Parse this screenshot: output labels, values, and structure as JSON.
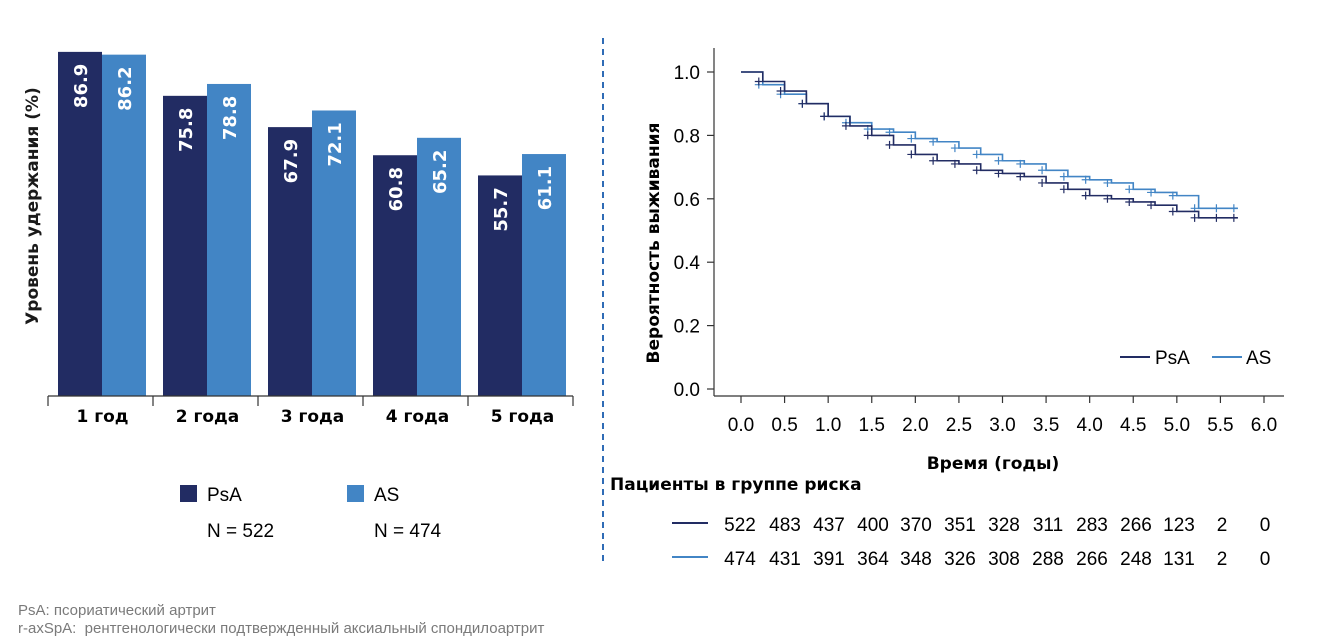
{
  "colors": {
    "psa": "#222c63",
    "as": "#4285c5",
    "divider": "#2f6cb6"
  },
  "chart_data": [
    {
      "type": "bar",
      "ylabel": "Уровень удержания (%)",
      "categories": [
        "1 год",
        "2 года",
        "3 года",
        "4 года",
        "5 года"
      ],
      "ylim": [
        0,
        100
      ],
      "series": [
        {
          "name": "PsA",
          "values": [
            86.9,
            75.8,
            67.9,
            60.8,
            55.7
          ],
          "value_labels": [
            "86.9",
            "75.8",
            "67.9",
            "60.8",
            "55.7"
          ]
        },
        {
          "name": "AS",
          "values": [
            86.2,
            78.8,
            72.1,
            65.2,
            61.1
          ],
          "value_labels": [
            "86.2",
            "78.8",
            "72.1",
            "65.2",
            "61.1"
          ]
        }
      ],
      "legend": [
        {
          "name": "PsA",
          "n": "N = 522"
        },
        {
          "name": "AS",
          "n": "N = 474"
        }
      ]
    },
    {
      "type": "line",
      "xlabel": "Время (годы)",
      "ylabel": "Вероятность выживания",
      "xlim": [
        0,
        6
      ],
      "ylim": [
        0,
        1
      ],
      "xticks": [
        "0.0",
        "0.5",
        "1.0",
        "1.5",
        "2.0",
        "2.5",
        "3.0",
        "3.5",
        "4.0",
        "4.5",
        "5.0",
        "5.5",
        "6.0"
      ],
      "yticks": [
        "0.0",
        "0.2",
        "0.4",
        "0.6",
        "0.8",
        "1.0"
      ],
      "legend_position": "bottom-right",
      "series": [
        {
          "name": "PsA",
          "x": [
            0,
            0.25,
            0.5,
            0.75,
            1.0,
            1.25,
            1.5,
            1.75,
            2.0,
            2.25,
            2.5,
            2.75,
            3.0,
            3.25,
            3.5,
            3.75,
            4.0,
            4.25,
            4.5,
            4.75,
            5.0,
            5.25,
            5.5,
            5.7
          ],
          "y": [
            1.0,
            0.97,
            0.94,
            0.9,
            0.86,
            0.83,
            0.8,
            0.77,
            0.74,
            0.72,
            0.71,
            0.69,
            0.68,
            0.67,
            0.65,
            0.63,
            0.61,
            0.6,
            0.59,
            0.58,
            0.56,
            0.54,
            0.54,
            0.54
          ]
        },
        {
          "name": "AS",
          "x": [
            0,
            0.25,
            0.5,
            0.75,
            1.0,
            1.25,
            1.5,
            1.75,
            2.0,
            2.25,
            2.5,
            2.75,
            3.0,
            3.25,
            3.5,
            3.75,
            4.0,
            4.25,
            4.5,
            4.75,
            5.0,
            5.25,
            5.5,
            5.7
          ],
          "y": [
            1.0,
            0.96,
            0.93,
            0.9,
            0.86,
            0.84,
            0.82,
            0.81,
            0.79,
            0.78,
            0.76,
            0.74,
            0.72,
            0.71,
            0.69,
            0.67,
            0.66,
            0.65,
            0.63,
            0.62,
            0.61,
            0.57,
            0.57,
            0.57
          ]
        }
      ],
      "risk_table": {
        "title": "Пациенты в группе риска",
        "rows": [
          {
            "name": "PsA",
            "values": [
              "522",
              "483",
              "437",
              "400",
              "370",
              "351",
              "328",
              "311",
              "283",
              "266",
              "123",
              "2",
              "0"
            ]
          },
          {
            "name": "AS",
            "values": [
              "474",
              "431",
              "391",
              "364",
              "348",
              "326",
              "308",
              "288",
              "266",
              "248",
              "131",
              "2",
              "0"
            ]
          }
        ]
      }
    }
  ],
  "footnotes": [
    "PsA: псориатический артрит",
    "r-axSpA:  рентгенологически подтвержденный аксиальный спондилоартрит"
  ]
}
